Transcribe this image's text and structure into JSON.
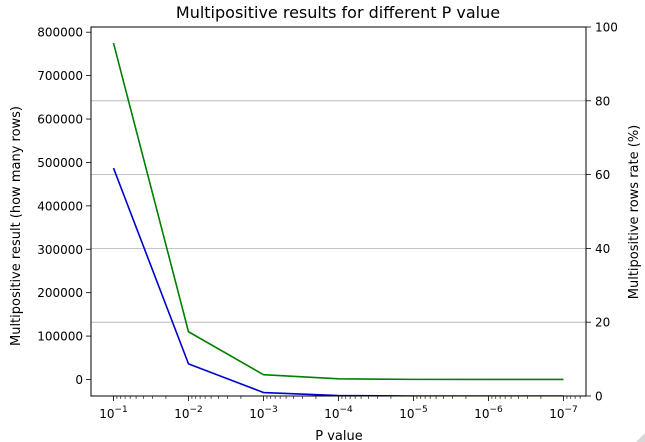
{
  "chart_data": {
    "type": "line",
    "title": "Multipositive results for different P value",
    "xlabel": "P value",
    "x_scale": "log",
    "x_direction": "decreasing",
    "x": [
      "10^-1",
      "10^-2",
      "10^-3",
      "10^-4",
      "10^-5",
      "10^-6",
      "10^-7"
    ],
    "x_values": [
      0.1,
      0.01,
      0.001,
      0.0001,
      1e-05,
      1e-06,
      1e-07
    ],
    "x_ticks": [
      {
        "base": "10",
        "exp": "−1"
      },
      {
        "base": "10",
        "exp": "−2"
      },
      {
        "base": "10",
        "exp": "−3"
      },
      {
        "base": "10",
        "exp": "−4"
      },
      {
        "base": "10",
        "exp": "−5"
      },
      {
        "base": "10",
        "exp": "−6"
      },
      {
        "base": "10",
        "exp": "−7"
      }
    ],
    "y_left": {
      "label": "Multipositive result (how many rows)",
      "color": "#008000",
      "ylim": [
        -38000,
        812000
      ],
      "ticks": [
        "0",
        "100000",
        "200000",
        "300000",
        "400000",
        "500000",
        "600000",
        "700000",
        "800000"
      ],
      "tick_values": [
        0,
        100000,
        200000,
        300000,
        400000,
        500000,
        600000,
        700000,
        800000
      ]
    },
    "y_right": {
      "label": "Multipositive rows rate (%)",
      "color": "#0000cc",
      "ylim": [
        0,
        100
      ],
      "ticks": [
        "0",
        "20",
        "40",
        "60",
        "80",
        "100"
      ],
      "tick_values": [
        0,
        20,
        40,
        60,
        80,
        100
      ],
      "grid": true
    },
    "series": [
      {
        "axis": "left",
        "color": "#008000",
        "values": [
          775000,
          110000,
          11000,
          1500,
          300,
          100,
          50
        ]
      },
      {
        "axis": "left",
        "color": "#0000cc",
        "values": [
          487000,
          36000,
          -30000,
          -37000,
          -38000,
          -38000,
          -38000
        ]
      }
    ]
  }
}
